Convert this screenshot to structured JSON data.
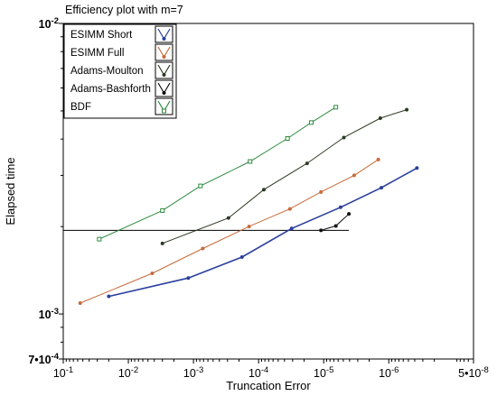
{
  "chart_data": {
    "type": "line",
    "title": "Efficiency plot with m=7",
    "xlabel": "Truncation Error",
    "ylabel": "Elapsed time",
    "x_scale": "log",
    "x_axis_reversed": true,
    "y_scale": "log",
    "xlim": [
      0.1,
      5e-08
    ],
    "ylim": [
      0.0007,
      0.01
    ],
    "x_tick_labels": [
      "10-1",
      "10-2",
      "10-3",
      "10-4",
      "10-5",
      "10-6",
      "5•10-8"
    ],
    "y_tick_labels": [
      "10-2",
      "10-3",
      "7•10-4"
    ],
    "grid": false,
    "legend_position": "top-left",
    "series": [
      {
        "name": "ESIMM Short",
        "color": "#2b3f9e",
        "marker": "dot",
        "points": [
          [
            0.02,
            0.00115
          ],
          [
            0.0012,
            0.00133
          ],
          [
            0.00018,
            0.00157
          ],
          [
            3.1e-05,
            0.00197
          ],
          [
            5.5e-06,
            0.00233
          ],
          [
            1.3e-06,
            0.00272
          ],
          [
            3.7e-07,
            0.00318
          ]
        ]
      },
      {
        "name": "ESIMM Full",
        "color": "#c76a3a",
        "marker": "dot",
        "points": [
          [
            0.055,
            0.00109
          ],
          [
            0.0043,
            0.00138
          ],
          [
            0.00072,
            0.00168
          ],
          [
            0.00014,
            0.002
          ],
          [
            3.3e-05,
            0.0023
          ],
          [
            1.1e-05,
            0.00263
          ],
          [
            3.4e-06,
            0.003
          ],
          [
            1.45e-06,
            0.0034
          ]
        ]
      },
      {
        "name": "Adams-Moulton",
        "color": "#2d3a22",
        "marker": "dot",
        "points": [
          [
            0.003,
            0.00175
          ],
          [
            0.00029,
            0.00214
          ],
          [
            8.3e-05,
            0.00268
          ],
          [
            1.8e-05,
            0.0033
          ],
          [
            4.9e-06,
            0.00405
          ],
          [
            1.35e-06,
            0.00472
          ],
          [
            5.3e-07,
            0.00505
          ]
        ]
      },
      {
        "name": "Adams-Bashforth",
        "color": "#111111",
        "marker": "dot",
        "points": [
          [
            1.1e-05,
            0.00194
          ],
          [
            6.5e-06,
            0.00201
          ],
          [
            4.1e-06,
            0.00221
          ]
        ]
      },
      {
        "name": "BDF",
        "color": "#2e8b3e",
        "marker": "square",
        "points": [
          [
            0.028,
            0.00181
          ],
          [
            0.003,
            0.00227
          ],
          [
            0.00078,
            0.00276
          ],
          [
            0.000135,
            0.00335
          ],
          [
            3.6e-05,
            0.00402
          ],
          [
            1.55e-05,
            0.00456
          ],
          [
            6.5e-06,
            0.00515
          ]
        ]
      }
    ],
    "reference_line": {
      "y": 0.00194,
      "x_from": 0.1,
      "x_to": 4.1e-06,
      "color": "#000000"
    }
  }
}
